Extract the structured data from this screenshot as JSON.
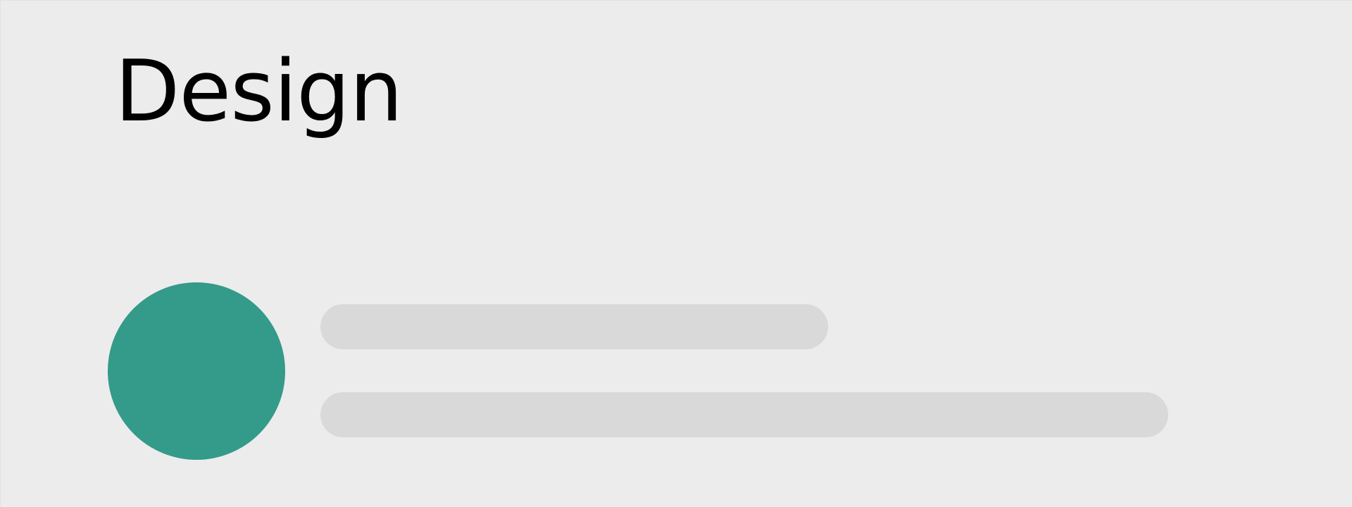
{
  "card": {
    "title": "Design"
  },
  "colors": {
    "background": "#ececec",
    "avatar": "#349a89",
    "skeleton": "#d9d9d9",
    "text": "#000000"
  }
}
